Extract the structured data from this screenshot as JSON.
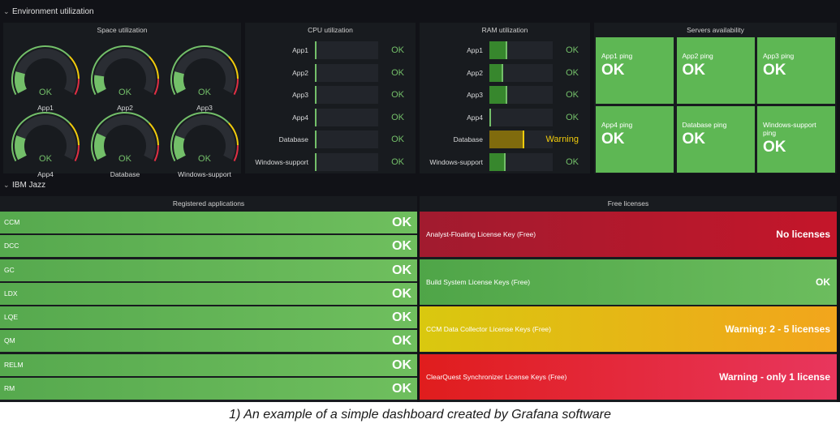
{
  "rows": {
    "environment": "Environment utilization",
    "ibm": "IBM Jazz"
  },
  "space": {
    "title": "Space utilization",
    "gauges": [
      {
        "name": "App1",
        "value": "OK",
        "level": 0.18
      },
      {
        "name": "App2",
        "value": "OK",
        "level": 0.15
      },
      {
        "name": "App3",
        "value": "OK",
        "level": 0.18
      },
      {
        "name": "App4",
        "value": "OK",
        "level": 0.2
      },
      {
        "name": "Database",
        "value": "OK",
        "level": 0.22
      },
      {
        "name": "Windows-support",
        "value": "OK",
        "level": 0.2
      }
    ]
  },
  "cpu": {
    "title": "CPU utilization",
    "rows": [
      {
        "name": "App1",
        "value": "OK",
        "level": 0.02
      },
      {
        "name": "App2",
        "value": "OK",
        "level": 0.02
      },
      {
        "name": "App3",
        "value": "OK",
        "level": 0.02
      },
      {
        "name": "App4",
        "value": "OK",
        "level": 0.02
      },
      {
        "name": "Database",
        "value": "OK",
        "level": 0.02
      },
      {
        "name": "Windows-support",
        "value": "OK",
        "level": 0.02
      }
    ]
  },
  "ram": {
    "title": "RAM utilization",
    "rows": [
      {
        "name": "App1",
        "value": "OK",
        "level": 0.28,
        "status": "ok"
      },
      {
        "name": "App2",
        "value": "OK",
        "level": 0.22,
        "status": "ok"
      },
      {
        "name": "App3",
        "value": "OK",
        "level": 0.28,
        "status": "ok"
      },
      {
        "name": "App4",
        "value": "OK",
        "level": 0.02,
        "status": "ok"
      },
      {
        "name": "Database",
        "value": "Warning",
        "level": 0.55,
        "status": "warn"
      },
      {
        "name": "Windows-support",
        "value": "OK",
        "level": 0.25,
        "status": "ok"
      }
    ]
  },
  "servers": {
    "title": "Servers availability",
    "tiles": [
      {
        "name": "App1 ping",
        "value": "OK"
      },
      {
        "name": "App2 ping",
        "value": "OK"
      },
      {
        "name": "App3 ping",
        "value": "OK"
      },
      {
        "name": "App4 ping",
        "value": "OK"
      },
      {
        "name": "Database ping",
        "value": "OK"
      },
      {
        "name": "Windows-support ping",
        "value": "OK"
      }
    ]
  },
  "registered": {
    "title": "Registered applications",
    "items": [
      {
        "name": "CCM",
        "value": "OK"
      },
      {
        "name": "DCC",
        "value": "OK"
      },
      {
        "name": "GC",
        "value": "OK"
      },
      {
        "name": "LDX",
        "value": "OK"
      },
      {
        "name": "LQE",
        "value": "OK"
      },
      {
        "name": "QM",
        "value": "OK"
      },
      {
        "name": "RELM",
        "value": "OK"
      },
      {
        "name": "RM",
        "value": "OK"
      }
    ]
  },
  "licenses": {
    "title": "Free licenses",
    "items": [
      {
        "name": "Analyst-Floating License Key (Free)",
        "value": "No licenses",
        "color": "#a11b2f",
        "color2": "#c4162a"
      },
      {
        "name": "Build System License Keys (Free)",
        "value": "OK",
        "color": "#4fa548",
        "color2": "#6cbd5e"
      },
      {
        "name": "CCM Data Collector License Keys (Free)",
        "value": "Warning: 2 - 5 licenses",
        "color": "#d9c80f",
        "color2": "#f2a51c"
      },
      {
        "name": "ClearQuest Synchronizer License Keys (Free)",
        "value": "Warning - only 1 license",
        "color": "#e01d1d",
        "color2": "#e8365d"
      }
    ]
  },
  "caption": "1) An example of a simple dashboard created by Grafana software",
  "colors": {
    "ok": "#73bf69",
    "warn": "#f2cc0c",
    "gauge_red": "#e02f44",
    "background": "#111217",
    "panel": "#181b1f"
  }
}
